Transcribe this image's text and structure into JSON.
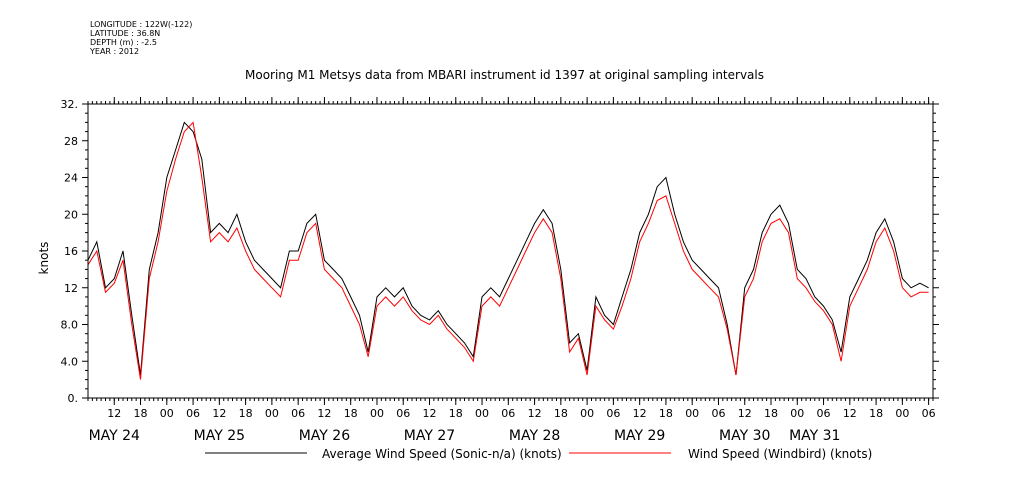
{
  "meta": {
    "longitude": "LONGITUDE : 122W(-122)",
    "latitude": "LATITUDE : 36.8N",
    "depth": "DEPTH (m) : -2.5",
    "year": "YEAR : 2012"
  },
  "chart_data": {
    "type": "line",
    "title": "Mooring M1 Metsys data from MBARI instrument id 1397 at original sampling intervals",
    "ylabel": "knots",
    "xlabel": "",
    "ylim": [
      0,
      32
    ],
    "yticks": [
      "0.",
      "4.0",
      "8.0",
      "12",
      "16",
      "20",
      "24",
      "28",
      "32."
    ],
    "x_units": "hours since 2012-05-23T06:00",
    "xlim": [
      0,
      193
    ],
    "hour_ticks": [
      {
        "h": 6,
        "label": "12"
      },
      {
        "h": 12,
        "label": "18"
      },
      {
        "h": 18,
        "label": "00"
      },
      {
        "h": 24,
        "label": "06"
      },
      {
        "h": 30,
        "label": "12"
      },
      {
        "h": 36,
        "label": "18"
      },
      {
        "h": 42,
        "label": "00"
      },
      {
        "h": 48,
        "label": "06"
      },
      {
        "h": 54,
        "label": "12"
      },
      {
        "h": 60,
        "label": "18"
      },
      {
        "h": 66,
        "label": "00"
      },
      {
        "h": 72,
        "label": "06"
      },
      {
        "h": 78,
        "label": "12"
      },
      {
        "h": 84,
        "label": "18"
      },
      {
        "h": 90,
        "label": "00"
      },
      {
        "h": 96,
        "label": "06"
      },
      {
        "h": 102,
        "label": "12"
      },
      {
        "h": 108,
        "label": "18"
      },
      {
        "h": 114,
        "label": "00"
      },
      {
        "h": 120,
        "label": "06"
      },
      {
        "h": 126,
        "label": "12"
      },
      {
        "h": 132,
        "label": "18"
      },
      {
        "h": 138,
        "label": "00"
      },
      {
        "h": 144,
        "label": "06"
      },
      {
        "h": 150,
        "label": "12"
      },
      {
        "h": 156,
        "label": "18"
      },
      {
        "h": 162,
        "label": "00"
      },
      {
        "h": 168,
        "label": "06"
      },
      {
        "h": 174,
        "label": "12"
      },
      {
        "h": 180,
        "label": "18"
      },
      {
        "h": 186,
        "label": "00"
      },
      {
        "h": 192,
        "label": "06"
      }
    ],
    "date_labels": [
      {
        "h": 6,
        "label": "MAY 24"
      },
      {
        "h": 30,
        "label": "MAY 25"
      },
      {
        "h": 54,
        "label": "MAY 26"
      },
      {
        "h": 78,
        "label": "MAY 27"
      },
      {
        "h": 102,
        "label": "MAY 28"
      },
      {
        "h": 126,
        "label": "MAY 29"
      },
      {
        "h": 150,
        "label": "MAY 30"
      },
      {
        "h": 166,
        "label": "MAY 31"
      }
    ],
    "series": [
      {
        "name": "Average Wind Speed (Sonic-n/a) (knots)",
        "color": "#000000",
        "x": [
          0,
          2,
          4,
          6,
          8,
          10,
          12,
          14,
          16,
          18,
          20,
          22,
          24,
          26,
          28,
          30,
          32,
          34,
          36,
          38,
          40,
          42,
          44,
          46,
          48,
          50,
          52,
          54,
          56,
          58,
          60,
          62,
          64,
          66,
          68,
          70,
          72,
          74,
          76,
          78,
          80,
          82,
          84,
          86,
          88,
          90,
          92,
          94,
          96,
          98,
          100,
          102,
          104,
          106,
          108,
          110,
          112,
          114,
          116,
          118,
          120,
          122,
          124,
          126,
          128,
          130,
          132,
          134,
          136,
          138,
          140,
          142,
          144,
          146,
          148,
          150,
          152,
          154,
          156,
          158,
          160,
          162,
          164,
          166,
          168,
          170,
          172,
          174,
          176,
          178,
          180,
          182,
          184,
          186,
          188,
          190,
          192
        ],
        "y": [
          15,
          17,
          12,
          13,
          16,
          9,
          2.5,
          14,
          18,
          24,
          27,
          30,
          29,
          26,
          18,
          19,
          18,
          20,
          17,
          15,
          14,
          13,
          12,
          16,
          16,
          19,
          20,
          15,
          14,
          13,
          11,
          9,
          5,
          11,
          12,
          11,
          12,
          10,
          9,
          8.5,
          9.5,
          8,
          7,
          6,
          4.5,
          11,
          12,
          11,
          13,
          15,
          17,
          19,
          20.5,
          19,
          14,
          6,
          7,
          3,
          11,
          9,
          8,
          11,
          14,
          18,
          20,
          23,
          24,
          20,
          17,
          15,
          14,
          13,
          12,
          8,
          2.5,
          12,
          14,
          18,
          20,
          21,
          19,
          14,
          13,
          11,
          10,
          8.5,
          5,
          11,
          13,
          15,
          18,
          19.5,
          17,
          13,
          12,
          12.5,
          12
        ]
      },
      {
        "name": "Wind Speed (Windbird) (knots)",
        "color": "#ff0000",
        "x": [
          0,
          2,
          4,
          6,
          8,
          10,
          12,
          14,
          16,
          18,
          20,
          22,
          24,
          26,
          28,
          30,
          32,
          34,
          36,
          38,
          40,
          42,
          44,
          46,
          48,
          50,
          52,
          54,
          56,
          58,
          60,
          62,
          64,
          66,
          68,
          70,
          72,
          74,
          76,
          78,
          80,
          82,
          84,
          86,
          88,
          90,
          92,
          94,
          96,
          98,
          100,
          102,
          104,
          106,
          108,
          110,
          112,
          114,
          116,
          118,
          120,
          122,
          124,
          126,
          128,
          130,
          132,
          134,
          136,
          138,
          140,
          142,
          144,
          146,
          148,
          150,
          152,
          154,
          156,
          158,
          160,
          162,
          164,
          166,
          168,
          170,
          172,
          174,
          176,
          178,
          180,
          182,
          184,
          186,
          188,
          190,
          192
        ],
        "y": [
          14.5,
          16,
          11.5,
          12.5,
          15,
          8,
          2,
          13,
          17,
          22.5,
          26,
          29,
          30,
          24,
          17,
          18,
          17,
          18.5,
          16,
          14,
          13,
          12,
          11,
          15,
          15,
          18,
          19,
          14,
          13,
          12,
          10,
          8,
          4.5,
          10,
          11,
          10,
          11,
          9.5,
          8.5,
          8,
          9,
          7.5,
          6.5,
          5.5,
          4,
          10,
          11,
          10,
          12,
          14,
          16,
          18,
          19.5,
          18,
          13,
          5,
          6.5,
          2.5,
          10,
          8.5,
          7.5,
          10,
          13,
          17,
          19,
          21.5,
          22,
          19,
          16,
          14,
          13,
          12,
          11,
          7.5,
          2.5,
          11,
          13,
          17,
          19,
          19.5,
          18,
          13,
          12,
          10.5,
          9.5,
          8,
          4,
          10,
          12,
          14,
          17,
          18.5,
          16,
          12,
          11,
          11.5,
          11.5
        ]
      }
    ]
  }
}
